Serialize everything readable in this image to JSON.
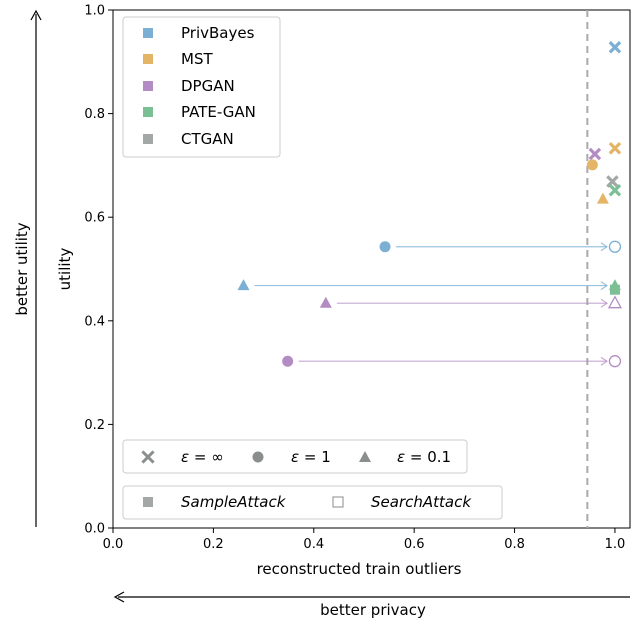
{
  "chart_data": {
    "type": "scatter",
    "xlabel": "reconstructed train outliers",
    "ylabel": "utility",
    "xlim": [
      0.0,
      1.03
    ],
    "ylim": [
      0.0,
      1.0
    ],
    "xticks": [
      "0.0",
      "0.2",
      "0.4",
      "0.6",
      "0.8",
      "1.0"
    ],
    "yticks": [
      "0.0",
      "0.2",
      "0.4",
      "0.6",
      "0.8",
      "1.0"
    ],
    "outer_y_label": "better utility",
    "outer_x_label": "better privacy",
    "threshold_x": 0.945,
    "legend_methods": [
      {
        "name": "PrivBayes",
        "color": "#7bafd4"
      },
      {
        "name": "MST",
        "color": "#e5b567"
      },
      {
        "name": "DPGAN",
        "color": "#b48cc4"
      },
      {
        "name": "PATE-GAN",
        "color": "#7dbf95"
      },
      {
        "name": "CTGAN",
        "color": "#a3a7a6"
      }
    ],
    "legend_epsilon": [
      {
        "marker": "x",
        "label_prefix": "ε",
        "label_suffix": " = ∞"
      },
      {
        "marker": "circle",
        "label_prefix": "ε",
        "label_suffix": " = 1"
      },
      {
        "marker": "triangle",
        "label_prefix": "ε",
        "label_suffix": " = 0.1"
      }
    ],
    "legend_attacks": [
      {
        "marker": "filled-square",
        "label": "SampleAttack"
      },
      {
        "marker": "open-square",
        "label": "SearchAttack"
      }
    ],
    "points": [
      {
        "method": "PrivBayes",
        "marker": "x",
        "x": 1.0,
        "y": 0.928,
        "color": "#7bafd4",
        "filled": true
      },
      {
        "method": "MST",
        "marker": "x",
        "x": 1.0,
        "y": 0.733,
        "color": "#e5b567",
        "filled": true
      },
      {
        "method": "DPGAN",
        "marker": "x",
        "x": 0.96,
        "y": 0.722,
        "color": "#b48cc4",
        "filled": true
      },
      {
        "method": "MST",
        "marker": "circle",
        "x": 0.955,
        "y": 0.701,
        "color": "#e5b567",
        "filled": true
      },
      {
        "method": "CTGAN",
        "marker": "x",
        "x": 0.995,
        "y": 0.669,
        "color": "#a3a7a6",
        "filled": true
      },
      {
        "method": "PATE-GAN",
        "marker": "x",
        "x": 1.0,
        "y": 0.652,
        "color": "#7dbf95",
        "filled": true
      },
      {
        "method": "MST",
        "marker": "triangle",
        "x": 0.976,
        "y": 0.635,
        "color": "#e5b567",
        "filled": true
      },
      {
        "method": "PrivBayes",
        "marker": "circle",
        "x": 0.542,
        "y": 0.543,
        "color": "#7bafd4",
        "filled": true
      },
      {
        "method": "PrivBayes",
        "marker": "circle",
        "x": 1.0,
        "y": 0.543,
        "color": "#7bafd4",
        "filled": false
      },
      {
        "method": "PrivBayes",
        "marker": "triangle",
        "x": 0.26,
        "y": 0.468,
        "color": "#7bafd4",
        "filled": true
      },
      {
        "method": "PATE-GAN",
        "marker": "triangle",
        "x": 1.0,
        "y": 0.468,
        "color": "#7dbf95",
        "filled": true
      },
      {
        "method": "PATE-GAN",
        "marker": "square",
        "x": 1.0,
        "y": 0.46,
        "color": "#7dbf95",
        "filled": true
      },
      {
        "method": "DPGAN",
        "marker": "triangle",
        "x": 0.424,
        "y": 0.434,
        "color": "#b48cc4",
        "filled": true
      },
      {
        "method": "DPGAN",
        "marker": "triangle",
        "x": 1.0,
        "y": 0.434,
        "color": "#b48cc4",
        "filled": false
      },
      {
        "method": "DPGAN",
        "marker": "circle",
        "x": 0.348,
        "y": 0.322,
        "color": "#b48cc4",
        "filled": true
      },
      {
        "method": "DPGAN",
        "marker": "circle",
        "x": 1.0,
        "y": 0.322,
        "color": "#b48cc4",
        "filled": false
      }
    ],
    "arrows": [
      {
        "x1": 0.542,
        "x2": 1.0,
        "y": 0.543,
        "color": "#7bafd4"
      },
      {
        "x1": 0.26,
        "x2": 1.0,
        "y": 0.468,
        "color": "#7bafd4"
      },
      {
        "x1": 0.424,
        "x2": 1.0,
        "y": 0.434,
        "color": "#b48cc4"
      },
      {
        "x1": 0.348,
        "x2": 1.0,
        "y": 0.322,
        "color": "#b48cc4"
      }
    ]
  }
}
